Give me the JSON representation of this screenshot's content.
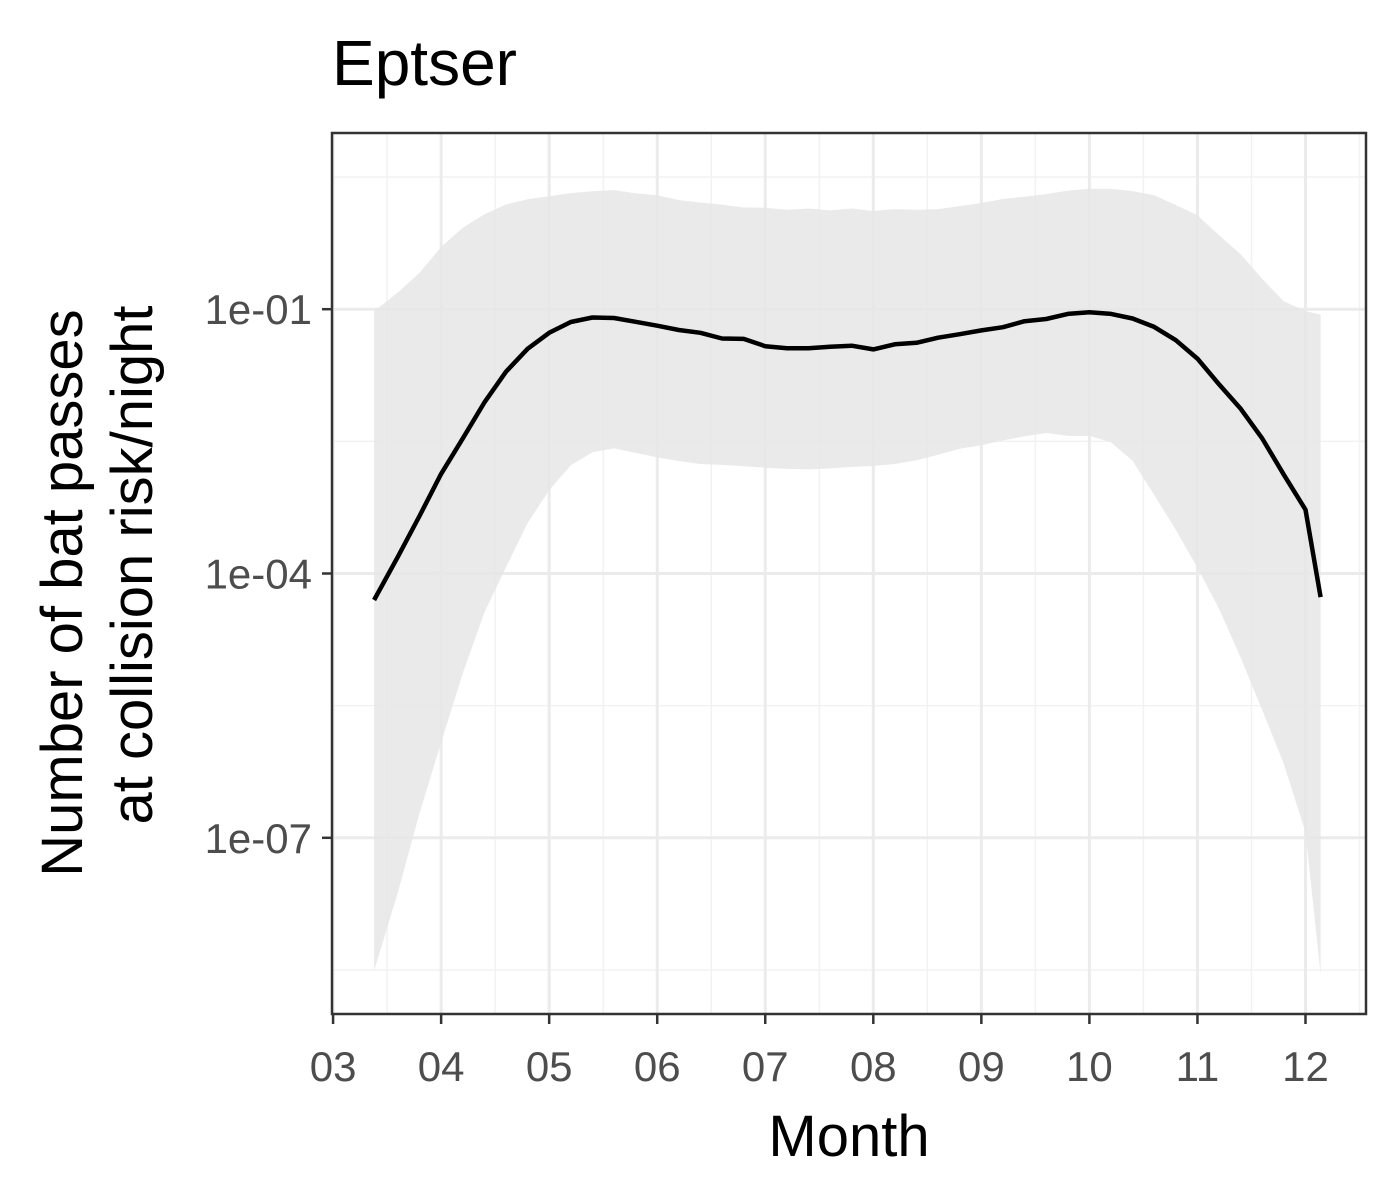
{
  "chart_data": {
    "type": "line",
    "title": "Eptser",
    "xlabel": "Month",
    "ylabel_lines": [
      "Number of bat passes",
      "at collision risk/night"
    ],
    "x_scale": "linear",
    "y_scale": "log10",
    "xlim": [
      2.99,
      12.56
    ],
    "ylim": [
      1e-09,
      10.0
    ],
    "x_ticks": [
      3,
      4,
      5,
      6,
      7,
      8,
      9,
      10,
      11,
      12
    ],
    "x_tick_labels": [
      "03",
      "04",
      "05",
      "06",
      "07",
      "08",
      "09",
      "10",
      "11",
      "12"
    ],
    "y_ticks": [
      1e-07,
      0.0001,
      0.1
    ],
    "y_tick_labels": [
      "1e-07",
      "1e-04",
      "1e-01"
    ],
    "grid": true,
    "legend": "none",
    "colors": {
      "line": "#000000",
      "ribbon": "#e6e6e6",
      "grid_major": "#ebebeb",
      "grid_minor": "#f2f2f2",
      "panel_border": "#333333",
      "tick_text": "#4d4d4d"
    },
    "series": [
      {
        "x": [
          3.38,
          3.6,
          3.8,
          4.0,
          4.2,
          4.4,
          4.6,
          4.8,
          5.0,
          5.2,
          5.4,
          5.6,
          5.8,
          6.0,
          6.2,
          6.4,
          6.6,
          6.8,
          7.0,
          7.2,
          7.4,
          7.6,
          7.8,
          8.0,
          8.2,
          8.4,
          8.6,
          8.8,
          9.0,
          9.2,
          9.4,
          9.6,
          9.8,
          10.0,
          10.2,
          10.4,
          10.6,
          10.8,
          11.0,
          11.2,
          11.4,
          11.6,
          11.8,
          12.0,
          12.14
        ],
        "y": [
          5e-05,
          0.000155,
          0.00045,
          0.00135,
          0.0034,
          0.0087,
          0.0195,
          0.0355,
          0.054,
          0.0715,
          0.0805,
          0.0795,
          0.072,
          0.065,
          0.058,
          0.054,
          0.0465,
          0.046,
          0.038,
          0.036,
          0.036,
          0.0375,
          0.0385,
          0.035,
          0.04,
          0.0415,
          0.0475,
          0.052,
          0.0575,
          0.0625,
          0.073,
          0.0775,
          0.0885,
          0.0925,
          0.0885,
          0.0785,
          0.063,
          0.0445,
          0.0275,
          0.014,
          0.0074,
          0.0034,
          0.00132,
          0.00053,
          5.4e-05
        ],
        "lower": [
          3.1e-09,
          2.4e-08,
          1.9e-07,
          1.2e-06,
          7.3e-06,
          3.6e-05,
          0.000118,
          0.000373,
          0.000884,
          0.00169,
          0.00238,
          0.00263,
          0.00234,
          0.00208,
          0.00189,
          0.00175,
          0.00171,
          0.00165,
          0.00159,
          0.00154,
          0.00152,
          0.00156,
          0.00162,
          0.00166,
          0.00175,
          0.00193,
          0.00223,
          0.00261,
          0.00286,
          0.00324,
          0.00361,
          0.00393,
          0.00365,
          0.00365,
          0.00309,
          0.0019,
          0.00078,
          0.000313,
          0.000116,
          3.96e-05,
          1.11e-05,
          2.81e-06,
          6.86e-07,
          1.16e-07,
          2.83e-09
        ],
        "upper": [
          0.0946,
          0.155,
          0.258,
          0.51,
          0.841,
          1.191,
          1.544,
          1.77,
          1.914,
          2.078,
          2.182,
          2.25,
          2.074,
          1.963,
          1.733,
          1.627,
          1.541,
          1.425,
          1.419,
          1.343,
          1.39,
          1.323,
          1.39,
          1.303,
          1.369,
          1.343,
          1.369,
          1.48,
          1.607,
          1.78,
          1.895,
          2.024,
          2.221,
          2.335,
          2.318,
          2.192,
          1.962,
          1.523,
          1.168,
          0.691,
          0.421,
          0.22,
          0.123,
          0.0947,
          0.0871
        ]
      }
    ]
  }
}
